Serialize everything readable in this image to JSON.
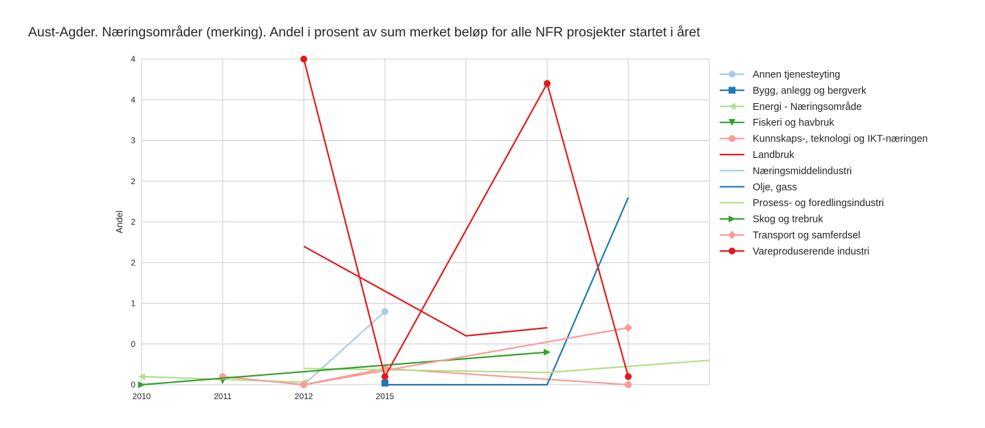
{
  "chart_data": {
    "type": "line",
    "title": "Aust-Agder. Næringsområder (merking). Andel i prosent av sum merket beløp for alle NFR prosjekter startet i året",
    "xlabel": "",
    "ylabel": "Andel",
    "x_tick_labels": [
      "2010",
      "2011",
      "2012",
      "2015"
    ],
    "y_tick_labels": [
      "0",
      "0",
      "1",
      "2",
      "2",
      "2",
      "3",
      "4",
      "4"
    ],
    "xlim": [
      2010,
      2017
    ],
    "ylim": [
      0,
      4
    ],
    "grid": true,
    "legend_position": "right",
    "series": [
      {
        "name": "Annen tjenesteyting",
        "color": "#a6cee3",
        "marker": "circle",
        "points": [
          [
            2012,
            0.0
          ],
          [
            2015,
            0.9
          ]
        ]
      },
      {
        "name": "Bygg, anlegg og bergverk",
        "color": "#1f78b4",
        "marker": "square",
        "points": [
          [
            2015,
            0.02
          ]
        ]
      },
      {
        "name": "Energi - Næringsområde",
        "color": "#b2df8a",
        "marker": "triangle-left",
        "points": [
          [
            2010,
            0.1
          ],
          [
            2012,
            0.03
          ]
        ]
      },
      {
        "name": "Fiskeri og havbruk",
        "color": "#33a02c",
        "marker": "triangle-down",
        "points": [
          [
            2011,
            0.05
          ]
        ]
      },
      {
        "name": "Kunnskaps-, teknologi og IKT-næringen",
        "color": "#fb9a99",
        "marker": "circle",
        "points": [
          [
            2011,
            0.1
          ],
          [
            2012,
            0.0
          ],
          [
            2015,
            0.2
          ],
          [
            2017,
            0.0
          ]
        ]
      },
      {
        "name": "Landbruk",
        "color": "#e31a1c",
        "marker": "none",
        "points": [
          [
            2012,
            1.7
          ],
          [
            2015,
            1.15
          ],
          [
            2016,
            0.6
          ],
          [
            2016.5,
            0.7
          ]
        ]
      },
      {
        "name": "Næringsmiddelindustri",
        "color": "#a6cee3",
        "marker": "none",
        "points": []
      },
      {
        "name": "Olje, gass",
        "color": "#1f78b4",
        "marker": "none",
        "points": [
          [
            2015,
            0.0
          ],
          [
            2016.5,
            0.0
          ],
          [
            2017,
            2.3
          ]
        ]
      },
      {
        "name": "Prosess- og foredlingsindustri",
        "color": "#b2df8a",
        "marker": "none",
        "points": [
          [
            2012,
            0.2
          ],
          [
            2016.5,
            0.15
          ],
          [
            2018,
            0.3
          ]
        ]
      },
      {
        "name": "Skog og trebruk",
        "color": "#33a02c",
        "marker": "triangle-right",
        "points": [
          [
            2010,
            0.0
          ],
          [
            2016.5,
            0.4
          ]
        ]
      },
      {
        "name": "Transport og samferdsel",
        "color": "#fb9a99",
        "marker": "diamond",
        "points": [
          [
            2012,
            0.0
          ],
          [
            2017,
            0.7
          ]
        ]
      },
      {
        "name": "Vareproduserende industri",
        "color": "#e31a1c",
        "marker": "circle",
        "points": [
          [
            2012,
            4.0
          ],
          [
            2015,
            0.1
          ],
          [
            2016.5,
            3.7
          ],
          [
            2017,
            0.1
          ]
        ]
      }
    ]
  }
}
